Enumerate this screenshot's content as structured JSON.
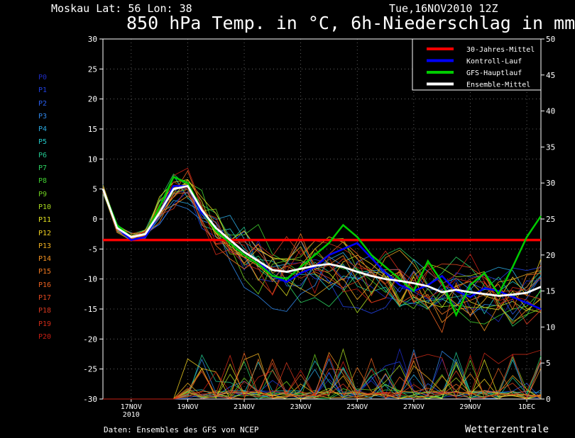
{
  "header": {
    "location": "Moskau   Lat: 56 Lon: 38",
    "datetime": "Tue,16NOV2010 12Z",
    "title": "850 hPa Temp. in °C, 6h-Niederschlag in mm"
  },
  "footer": {
    "source": "Daten: Ensembles des GFS von NCEP",
    "brand": "Wetterzentrale"
  },
  "members": [
    {
      "label": "P0",
      "color": "#1f2cc4"
    },
    {
      "label": "P1",
      "color": "#2040e0"
    },
    {
      "label": "P2",
      "color": "#2a5ff0"
    },
    {
      "label": "P3",
      "color": "#2f86e8"
    },
    {
      "label": "P4",
      "color": "#2aa8e0"
    },
    {
      "label": "P5",
      "color": "#22c8c8"
    },
    {
      "label": "P6",
      "color": "#22c890"
    },
    {
      "label": "P7",
      "color": "#2cd060"
    },
    {
      "label": "P8",
      "color": "#40d030"
    },
    {
      "label": "P9",
      "color": "#70d020"
    },
    {
      "label": "P10",
      "color": "#a8d820"
    },
    {
      "label": "P11",
      "color": "#e0e020"
    },
    {
      "label": "P12",
      "color": "#f0d020"
    },
    {
      "label": "P13",
      "color": "#f0b020"
    },
    {
      "label": "P14",
      "color": "#f09020"
    },
    {
      "label": "P15",
      "color": "#f07820"
    },
    {
      "label": "P16",
      "color": "#e86020"
    },
    {
      "label": "P17",
      "color": "#e04820"
    },
    {
      "label": "P18",
      "color": "#d83820"
    },
    {
      "label": "P19",
      "color": "#d02a18"
    },
    {
      "label": "P20",
      "color": "#c81e14"
    }
  ],
  "chart_data": {
    "type": "line",
    "x_tick_labels": [
      "17NOV",
      "19NOV",
      "21NOV",
      "23NOV",
      "25NOV",
      "27NOV",
      "29NOV",
      "1DEC"
    ],
    "x_year_label": "2010",
    "x_days": [
      0,
      0.5,
      1,
      1.5,
      2,
      2.5,
      3,
      3.5,
      4,
      4.5,
      5,
      5.5,
      6,
      6.5,
      7,
      7.5,
      8,
      8.5,
      9,
      9.5,
      10,
      10.5,
      11,
      11.5,
      12,
      12.5,
      13,
      13.5,
      14,
      14.5,
      15,
      15.5
    ],
    "ylim_left": [
      -30,
      30
    ],
    "y_ticks_left": [
      -30,
      -25,
      -20,
      -15,
      -10,
      -5,
      0,
      5,
      10,
      15,
      20,
      25,
      30
    ],
    "ylim_right": [
      0,
      50
    ],
    "y_ticks_right": [
      0,
      5,
      10,
      15,
      20,
      25,
      30,
      35,
      40,
      45,
      50
    ],
    "grid": true,
    "legend_position": "top-right",
    "legend": [
      {
        "label": "30-Jahres-Mittel",
        "color": "#ff0000"
      },
      {
        "label": "Kontroll-Lauf",
        "color": "#0000ff"
      },
      {
        "label": "GFS-Hauptlauf",
        "color": "#00cc00"
      },
      {
        "label": "Ensemble-Mittel",
        "color": "#ffffff"
      }
    ],
    "series": [
      {
        "name": "30-Jahres-Mittel",
        "color": "#ff0000",
        "values": [
          -3.5,
          -3.5,
          -3.5,
          -3.5,
          -3.5,
          -3.5,
          -3.5,
          -3.5,
          -3.5,
          -3.5,
          -3.5,
          -3.5,
          -3.5,
          -3.5,
          -3.5,
          -3.5,
          -3.5,
          -3.5,
          -3.5,
          -3.5,
          -3.5,
          -3.5,
          -3.5,
          -3.5,
          -3.5,
          -3.5,
          -3.5,
          -3.5,
          -3.5,
          -3.5,
          -3.5,
          -3.5
        ]
      },
      {
        "name": "Kontroll-Lauf",
        "color": "#0000ff",
        "values": [
          5,
          -1.5,
          -3.5,
          -3,
          1,
          5.5,
          5.5,
          1,
          -1.5,
          -3.5,
          -5.5,
          -7,
          -9.5,
          -10.5,
          -9,
          -8,
          -6,
          -5,
          -4,
          -6.5,
          -9,
          -11,
          -12,
          -11,
          -9.5,
          -12,
          -13,
          -11.5,
          -12,
          -13,
          -14,
          -15
        ]
      },
      {
        "name": "GFS-Hauptlauf",
        "color": "#00cc00",
        "values": [
          5,
          -1,
          -3,
          -2.5,
          2,
          7,
          6,
          1.5,
          -2,
          -4,
          -6,
          -7.5,
          -9.5,
          -10,
          -8,
          -6,
          -4,
          -1,
          -3,
          -6,
          -8,
          -10,
          -12,
          -7,
          -10.5,
          -16,
          -11,
          -9,
          -12.5,
          -8,
          -3,
          0.5
        ]
      },
      {
        "name": "Ensemble-Mittel",
        "color": "#ffffff",
        "values": [
          5,
          -1.5,
          -3,
          -2.5,
          1,
          5,
          5.5,
          1.5,
          -1.5,
          -3.5,
          -5.5,
          -7,
          -8.5,
          -8.8,
          -8.3,
          -7.8,
          -7.5,
          -8,
          -8.8,
          -9.5,
          -10,
          -10.3,
          -10.7,
          -11.2,
          -12.2,
          -11.8,
          -12.2,
          -12.5,
          -12.8,
          -12.6,
          -12.3,
          -11.3
        ]
      }
    ]
  }
}
